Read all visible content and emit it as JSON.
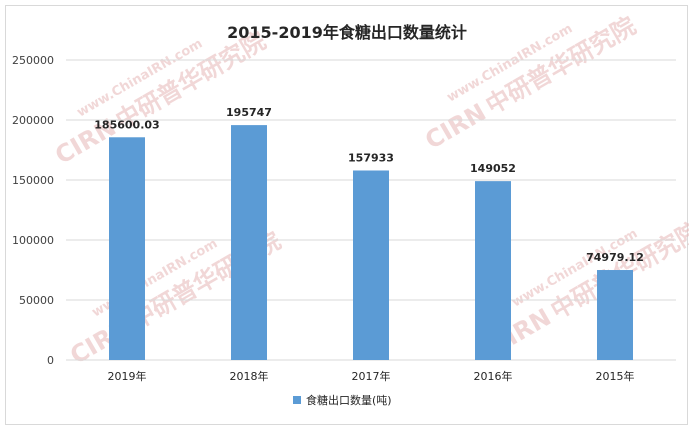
{
  "chart_data": {
    "type": "bar",
    "title": "2015-2019年食糖出口数量统计",
    "categories": [
      "2019年",
      "2018年",
      "2017年",
      "2016年",
      "2015年"
    ],
    "series": [
      {
        "name": "食糖出口数量(吨)",
        "values": [
          185600.03,
          195747,
          157933,
          149052,
          74979.12
        ],
        "labels": [
          "185600.03",
          "195747",
          "157933",
          "149052",
          "74979.12"
        ],
        "color": "#5b9bd5"
      }
    ],
    "ylim": [
      0,
      250000
    ],
    "yticks": [
      0,
      50000,
      100000,
      150000,
      200000,
      250000
    ],
    "grid": true,
    "legend": "bottom"
  },
  "watermark": {
    "url": "www.ChinaIRN.com",
    "logo": "CIRN",
    "name": "中研普华研究院"
  }
}
